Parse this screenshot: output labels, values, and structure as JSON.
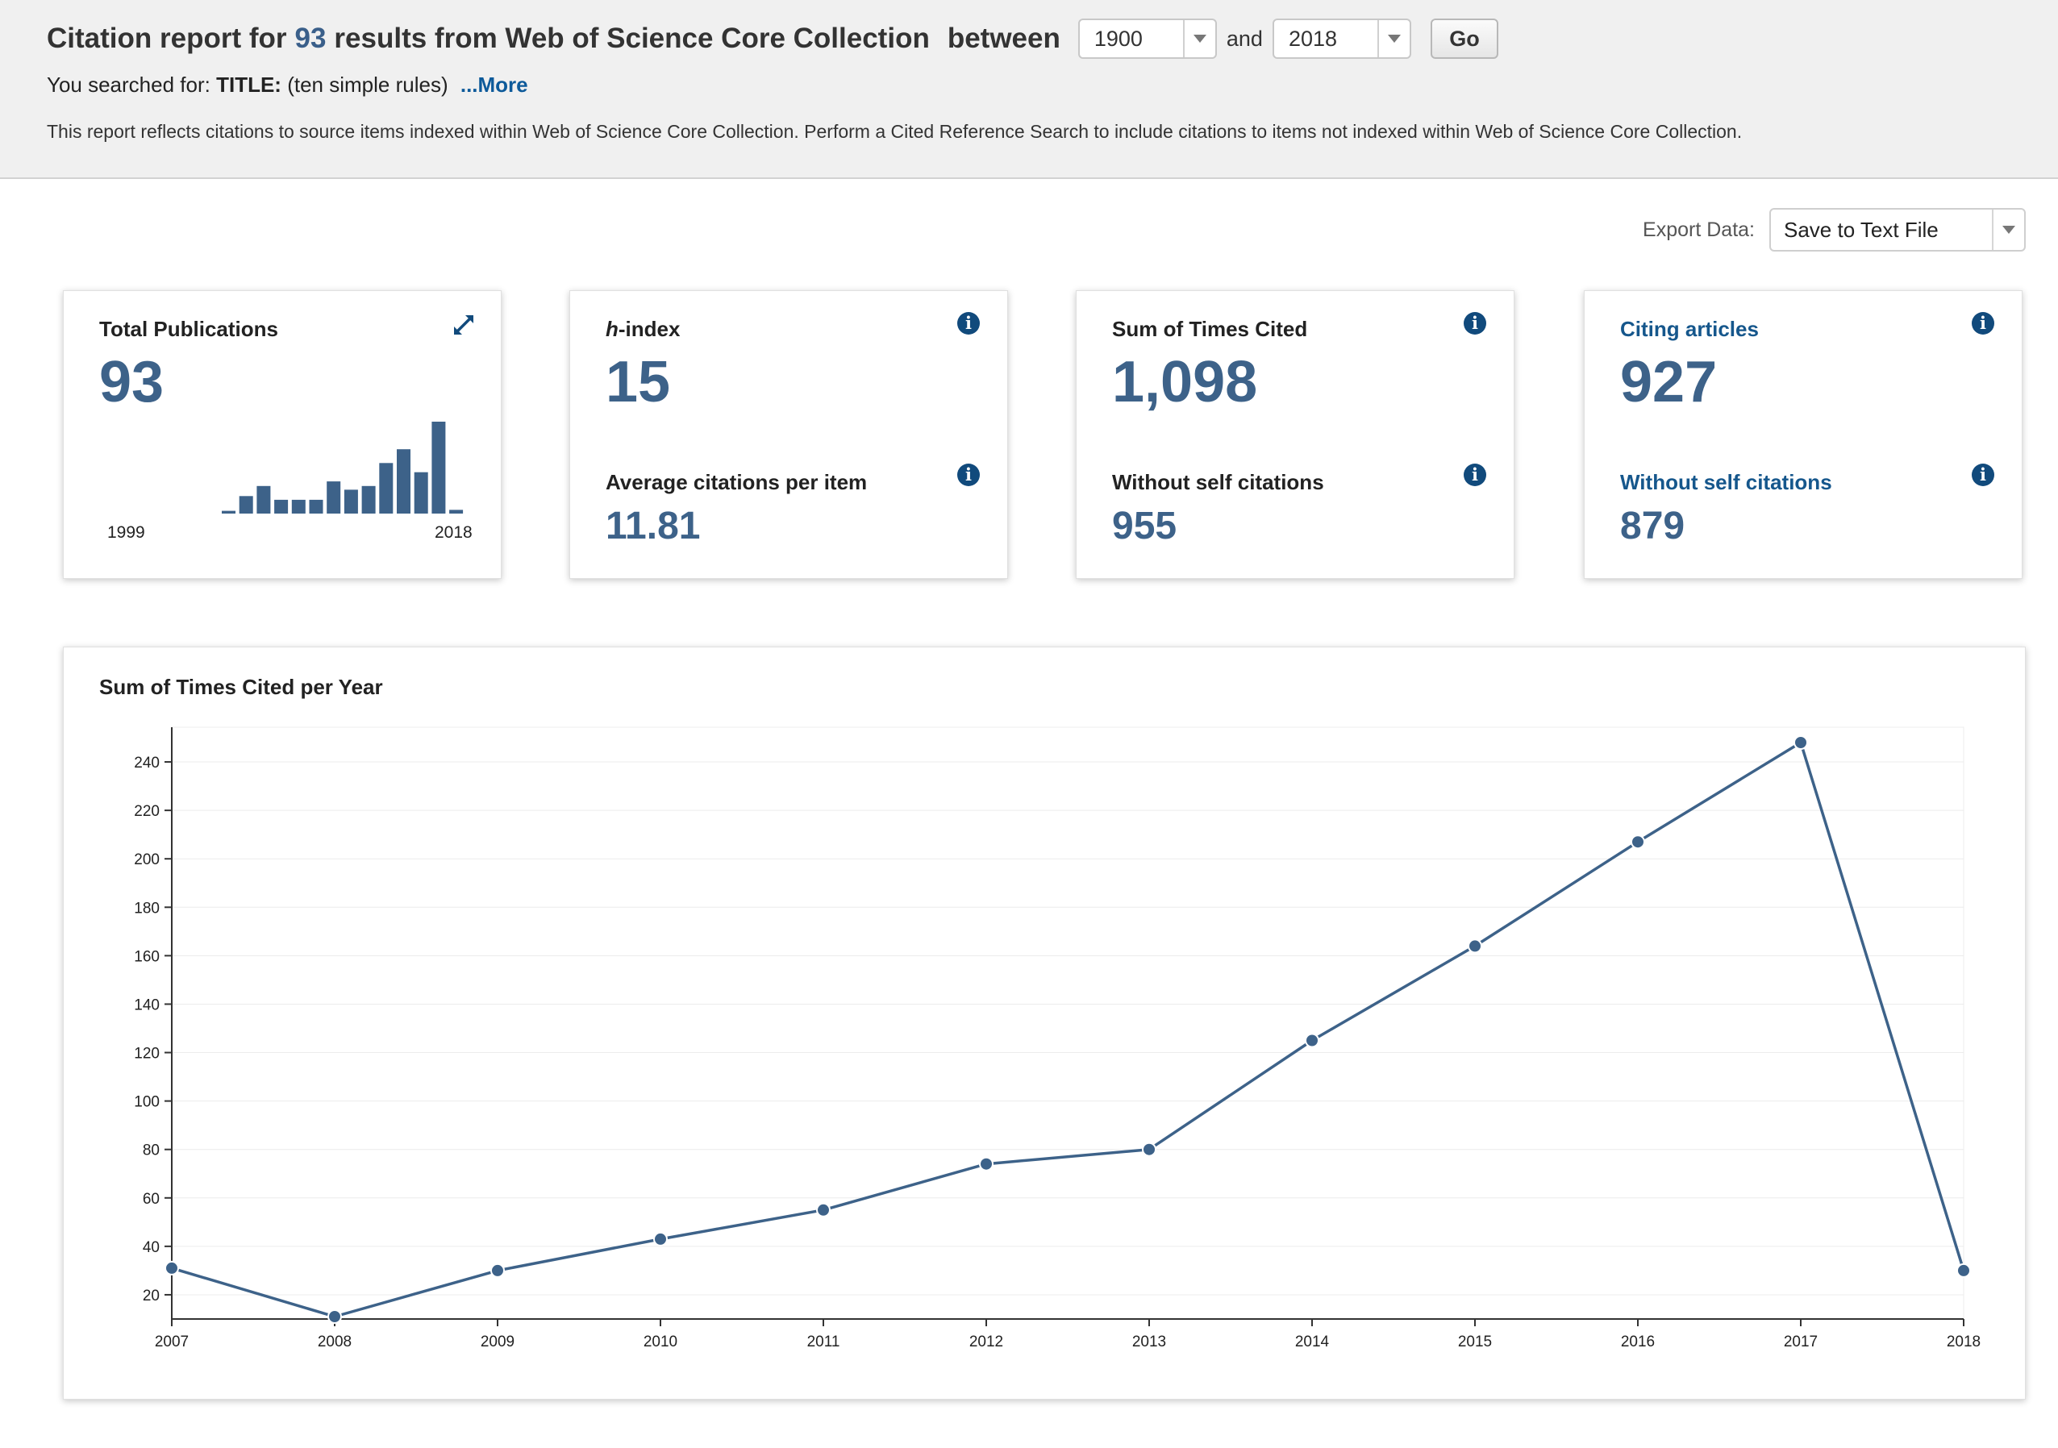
{
  "header": {
    "title_prefix": "Citation report for",
    "result_count": "93",
    "title_middle": "results from Web of Science Core Collection",
    "title_between": "between",
    "year_from": "1900",
    "year_and": "and",
    "year_to": "2018",
    "go_label": "Go",
    "searched_prefix": "You searched for:",
    "searched_field": "TITLE:",
    "searched_query": "(ten simple rules)",
    "more_link": "...More",
    "disclaimer": "This report reflects citations to source items indexed within Web of Science Core Collection. Perform a Cited Reference Search to include citations to items not indexed within Web of Science Core Collection."
  },
  "export": {
    "label": "Export Data:",
    "selected": "Save to Text File"
  },
  "cards": {
    "total_publications": {
      "label": "Total Publications",
      "value": "93",
      "start_year": "1999",
      "end_year": "2018",
      "bars": [
        0.03,
        0.19,
        0.3,
        0.15,
        0.15,
        0.15,
        0.35,
        0.26,
        0.3,
        0.55,
        0.7,
        0.45,
        1.0,
        0.04
      ]
    },
    "h_index": {
      "label_italic": "h",
      "label_rest": "-index",
      "value": "15",
      "sub_label": "Average citations per item",
      "sub_value": "11.81"
    },
    "times_cited": {
      "label": "Sum of Times Cited",
      "value": "1,098",
      "sub_label": "Without self citations",
      "sub_value": "955"
    },
    "citing_articles": {
      "label": "Citing articles",
      "value": "927",
      "sub_label": "Without self citations",
      "sub_value": "879"
    }
  },
  "colors": {
    "accent": "#3d6289",
    "link": "#16578c",
    "info_icon": "#114a7c"
  },
  "chart_data": {
    "type": "line",
    "title": "Sum of Times Cited per Year",
    "xlabel": "",
    "ylabel": "",
    "x": [
      "2007",
      "2008",
      "2009",
      "2010",
      "2011",
      "2012",
      "2013",
      "2014",
      "2015",
      "2016",
      "2017",
      "2018"
    ],
    "values": [
      31,
      11,
      30,
      43,
      55,
      74,
      80,
      125,
      164,
      207,
      248,
      30
    ],
    "yticks": [
      20,
      40,
      60,
      80,
      100,
      120,
      140,
      160,
      180,
      200,
      220,
      240
    ],
    "ylim": [
      10,
      249
    ],
    "grid": true,
    "legend": "none"
  }
}
